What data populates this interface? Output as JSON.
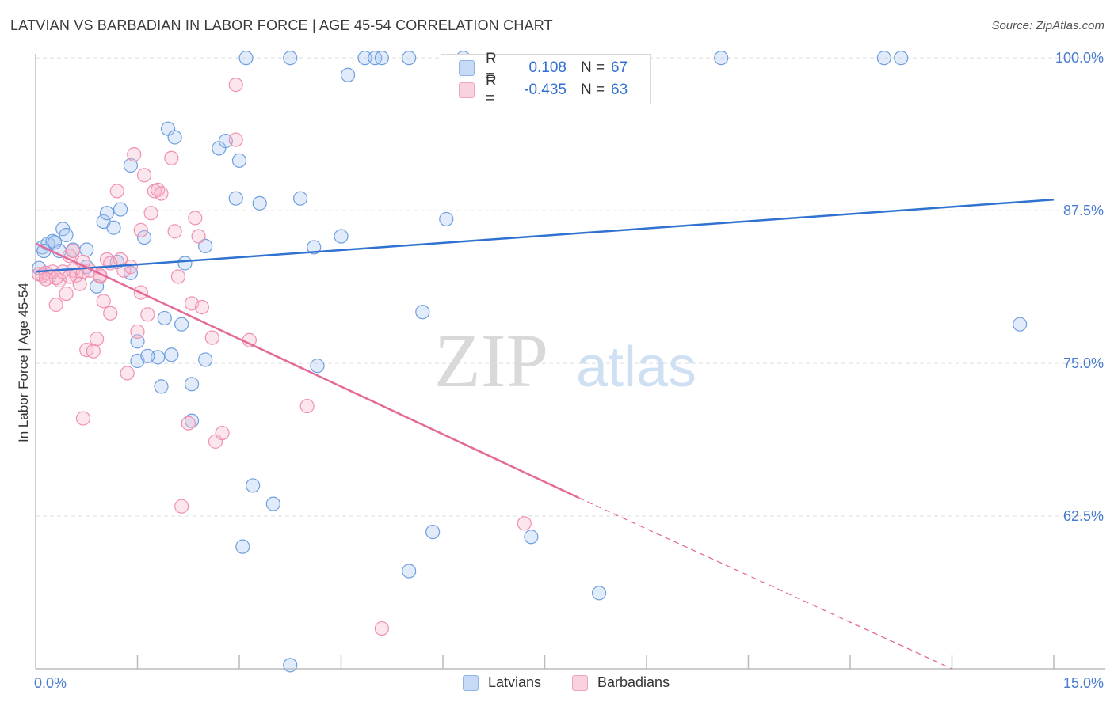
{
  "header": {
    "title": "LATVIAN VS BARBADIAN IN LABOR FORCE | AGE 45-54 CORRELATION CHART",
    "source": "Source: ZipAtlas.com"
  },
  "watermark": {
    "zip": "ZIP",
    "atlas": "atlas"
  },
  "legend": {
    "rows": [
      {
        "r_label": "R =",
        "r_value": "0.108",
        "n_label": "N =",
        "n_value": "67",
        "color": "#a9c6f0"
      },
      {
        "r_label": "R =",
        "r_value": "-0.435",
        "n_label": "N =",
        "n_value": "63",
        "color": "#f6b8cb"
      }
    ]
  },
  "bottom_legend": {
    "latvians": "Latvians",
    "barbadians": "Barbadians"
  },
  "chart_data": {
    "type": "scatter",
    "title": "LATVIAN VS BARBADIAN IN LABOR FORCE | AGE 45-54 CORRELATION CHART",
    "xlabel": "",
    "ylabel": "In Labor Force | Age 45-54",
    "xlim": [
      0,
      15
    ],
    "ylim": [
      50,
      101.5
    ],
    "x_tick_labels": [
      "0.0%",
      "15.0%"
    ],
    "y_ticks": [
      62.5,
      75.0,
      87.5,
      100.0
    ],
    "y_tick_labels": [
      "62.5%",
      "75.0%",
      "87.5%",
      "100.0%"
    ],
    "grid": "horizontal dashed",
    "legend_position": "top-center",
    "colors": {
      "latvians": "#6f9fe0",
      "barbadians": "#f090b0",
      "latvian_line": "#2f72d2",
      "barbadian_line": "#e46a98"
    },
    "series": [
      {
        "name": "Latvians",
        "points": [
          [
            0.05,
            82.8
          ],
          [
            0.1,
            84.5
          ],
          [
            0.18,
            84.8
          ],
          [
            0.25,
            85
          ],
          [
            0.4,
            86
          ],
          [
            0.45,
            85.5
          ],
          [
            0.35,
            84.2
          ],
          [
            0.55,
            84.3
          ],
          [
            0.75,
            84.3
          ],
          [
            0.75,
            82.9
          ],
          [
            0.9,
            81.3
          ],
          [
            1.0,
            86.6
          ],
          [
            1.05,
            87.3
          ],
          [
            1.15,
            86.1
          ],
          [
            1.25,
            87.6
          ],
          [
            1.2,
            83.3
          ],
          [
            1.4,
            82.4
          ],
          [
            1.4,
            91.2
          ],
          [
            1.6,
            85.3
          ],
          [
            1.5,
            76.8
          ],
          [
            1.5,
            75.2
          ],
          [
            1.8,
            75.5
          ],
          [
            1.85,
            73.1
          ],
          [
            1.9,
            78.7
          ],
          [
            1.95,
            94.2
          ],
          [
            2.05,
            93.5
          ],
          [
            2.15,
            78.2
          ],
          [
            2.2,
            83.2
          ],
          [
            2.3,
            73.3
          ],
          [
            2.3,
            70.3
          ],
          [
            2.5,
            75.3
          ],
          [
            2.5,
            84.6
          ],
          [
            2.7,
            92.6
          ],
          [
            2.8,
            93.2
          ],
          [
            2.95,
            88.5
          ],
          [
            3.0,
            91.6
          ],
          [
            3.05,
            60
          ],
          [
            3.1,
            100
          ],
          [
            3.2,
            65
          ],
          [
            3.3,
            88.1
          ],
          [
            3.5,
            63.5
          ],
          [
            3.75,
            100
          ],
          [
            3.9,
            88.5
          ],
          [
            3.75,
            50.3
          ],
          [
            4.1,
            84.5
          ],
          [
            4.15,
            74.8
          ],
          [
            4.5,
            85.4
          ],
          [
            4.6,
            98.6
          ],
          [
            4.85,
            100
          ],
          [
            5.0,
            100
          ],
          [
            5.1,
            100
          ],
          [
            5.5,
            100
          ],
          [
            5.5,
            58
          ],
          [
            5.7,
            79.2
          ],
          [
            5.85,
            61.2
          ],
          [
            6.05,
            86.8
          ],
          [
            6.3,
            100
          ],
          [
            7.3,
            60.8
          ],
          [
            8.3,
            56.2
          ],
          [
            10.1,
            100
          ],
          [
            12.5,
            100
          ],
          [
            12.75,
            100
          ],
          [
            14.5,
            78.2
          ],
          [
            0.12,
            84.2
          ],
          [
            0.28,
            84.9
          ],
          [
            2.0,
            75.7
          ],
          [
            1.65,
            75.6
          ]
        ]
      },
      {
        "name": "Barbadians",
        "points": [
          [
            0.05,
            82.3
          ],
          [
            0.1,
            82.2
          ],
          [
            0.15,
            82.4
          ],
          [
            0.2,
            82.1
          ],
          [
            0.25,
            82.5
          ],
          [
            0.3,
            79.8
          ],
          [
            0.35,
            81.8
          ],
          [
            0.4,
            82.5
          ],
          [
            0.45,
            80.7
          ],
          [
            0.5,
            83.8
          ],
          [
            0.55,
            84.2
          ],
          [
            0.55,
            82.6
          ],
          [
            0.6,
            82.2
          ],
          [
            0.65,
            81.5
          ],
          [
            0.7,
            82.5
          ],
          [
            0.7,
            70.5
          ],
          [
            0.75,
            76.1
          ],
          [
            0.8,
            82.6
          ],
          [
            0.85,
            76
          ],
          [
            0.9,
            77
          ],
          [
            0.95,
            82.1
          ],
          [
            1.0,
            80.1
          ],
          [
            1.05,
            83.5
          ],
          [
            1.1,
            79.1
          ],
          [
            1.2,
            89.1
          ],
          [
            1.25,
            83.5
          ],
          [
            1.3,
            82.6
          ],
          [
            1.35,
            74.2
          ],
          [
            1.4,
            82.9
          ],
          [
            1.45,
            92.1
          ],
          [
            1.5,
            77.6
          ],
          [
            1.55,
            80.8
          ],
          [
            1.55,
            85.9
          ],
          [
            1.6,
            90.4
          ],
          [
            1.65,
            79
          ],
          [
            1.7,
            87.3
          ],
          [
            1.75,
            89.1
          ],
          [
            1.8,
            89.2
          ],
          [
            1.85,
            88.9
          ],
          [
            2.0,
            91.8
          ],
          [
            2.05,
            85.8
          ],
          [
            2.1,
            82.1
          ],
          [
            2.15,
            63.3
          ],
          [
            2.25,
            70.1
          ],
          [
            2.3,
            79.9
          ],
          [
            2.35,
            86.9
          ],
          [
            2.4,
            85.4
          ],
          [
            2.45,
            79.6
          ],
          [
            2.6,
            77.1
          ],
          [
            2.65,
            68.6
          ],
          [
            2.75,
            69.3
          ],
          [
            2.95,
            93.3
          ],
          [
            2.95,
            97.8
          ],
          [
            3.15,
            76.9
          ],
          [
            4.0,
            71.5
          ],
          [
            5.1,
            53.3
          ],
          [
            7.2,
            61.9
          ],
          [
            0.5,
            82.1
          ],
          [
            0.3,
            82.0
          ],
          [
            0.15,
            81.9
          ],
          [
            0.7,
            83.3
          ],
          [
            0.95,
            82.2
          ],
          [
            1.1,
            83.2
          ]
        ]
      }
    ],
    "trend_lines": [
      {
        "series": "Latvians",
        "x_start": 0.0,
        "y_start": 82.5,
        "x_end": 15.0,
        "y_end": 88.4,
        "style": "solid"
      },
      {
        "series": "Barbadians",
        "x_start": 0.0,
        "y_start": 84.8,
        "x_end": 8.0,
        "y_end": 64.0,
        "x_dashed_end": 13.5,
        "y_dashed_end": 50.0,
        "style": "solid-then-dashed"
      }
    ]
  }
}
